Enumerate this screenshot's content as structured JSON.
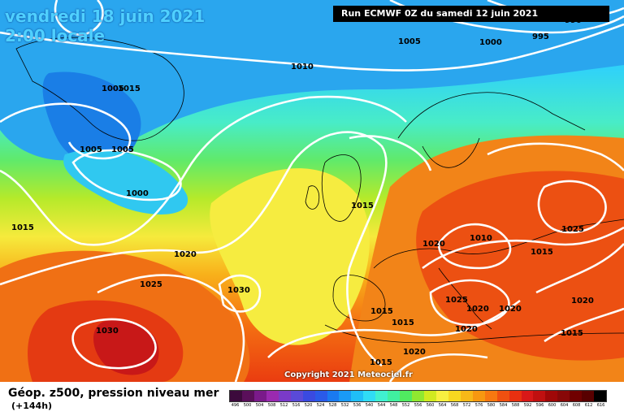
{
  "header": {
    "date": "vendredi 18 juin 2021",
    "local_time": "2:00 locale",
    "run": "Run ECMWF 0Z du samedi 12 juin 2021"
  },
  "copyright": "Copyright 2021 Meteociel.fr",
  "footer": {
    "title": "Géop. z500, pression niveau mer",
    "forecast_hour": "(+144h)"
  },
  "legend": {
    "values": [
      "496",
      "500",
      "504",
      "508",
      "512",
      "516",
      "520",
      "524",
      "528",
      "532",
      "536",
      "540",
      "544",
      "548",
      "552",
      "556",
      "560",
      "564",
      "568",
      "572",
      "576",
      "580",
      "584",
      "588",
      "592",
      "596",
      "600",
      "604",
      "608",
      "612",
      "616"
    ],
    "colors": [
      "#3c0a3c",
      "#5a0f5a",
      "#7a1a8a",
      "#9a2ab0",
      "#7a3ac8",
      "#5a4ad8",
      "#3a4ae0",
      "#2a5ae8",
      "#1a7af0",
      "#1a9af5",
      "#20bef8",
      "#30dcf5",
      "#40f0d0",
      "#40f0a0",
      "#50ea60",
      "#90e830",
      "#d0ea20",
      "#f8f040",
      "#f8d820",
      "#f8b818",
      "#f89810",
      "#f87810",
      "#f05010",
      "#e83010",
      "#d81818",
      "#c01010",
      "#a00808",
      "#880808",
      "#700000",
      "#580000",
      "#000000"
    ]
  },
  "isobars": [
    "1015",
    "1010",
    "1005",
    "1000",
    "995",
    "990",
    "1005",
    "1015",
    "1015",
    "1005",
    "1005",
    "1000",
    "1010",
    "1015",
    "1020",
    "1025",
    "1030",
    "1030",
    "1020",
    "1025",
    "1025",
    "1015",
    "1020",
    "1020",
    "1020",
    "1020",
    "1020",
    "1015",
    "1015",
    "1015"
  ]
}
